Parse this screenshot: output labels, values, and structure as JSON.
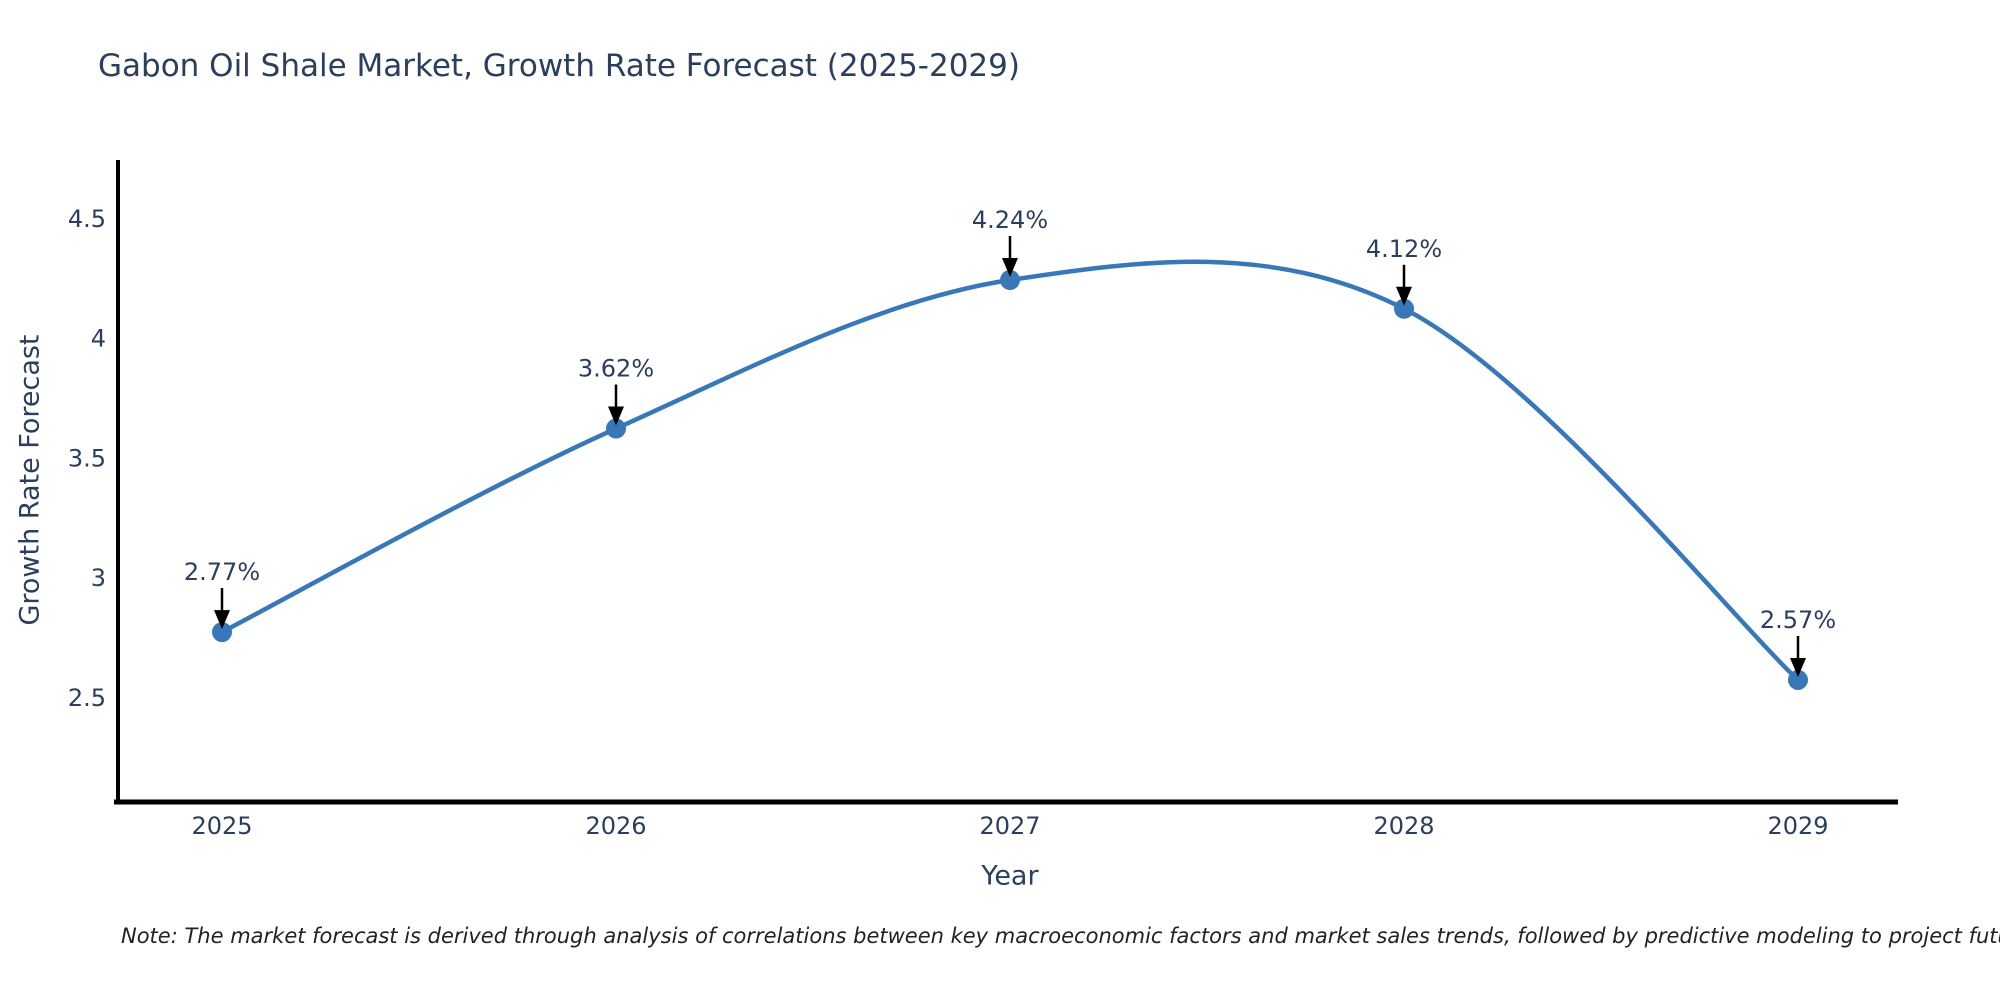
{
  "chart_data": {
    "type": "line",
    "title": "Gabon Oil Shale Market, Growth Rate Forecast (2025-2029)",
    "xlabel": "Year",
    "ylabel": "Growth Rate Forecast",
    "x": [
      2025,
      2026,
      2027,
      2028,
      2029
    ],
    "y": [
      2.77,
      3.62,
      4.24,
      4.12,
      2.57
    ],
    "point_labels": [
      "2.77%",
      "3.62%",
      "4.24%",
      "4.12%",
      "2.57%"
    ],
    "yticks": [
      2.5,
      3,
      3.5,
      4,
      4.5
    ],
    "ylim": [
      2.05,
      4.74
    ],
    "grid": false,
    "legend": "none",
    "smoothing": "spline",
    "line_color": "#3978b8",
    "marker_color": "#3978b8",
    "text_color": "#2a3f5f",
    "arrow_color": "#000000",
    "axis_color": "#000000"
  },
  "note": "Note: The market forecast is derived through analysis of correlations between key macroeconomic factors and market sales trends, followed by predictive modeling to project future sales"
}
